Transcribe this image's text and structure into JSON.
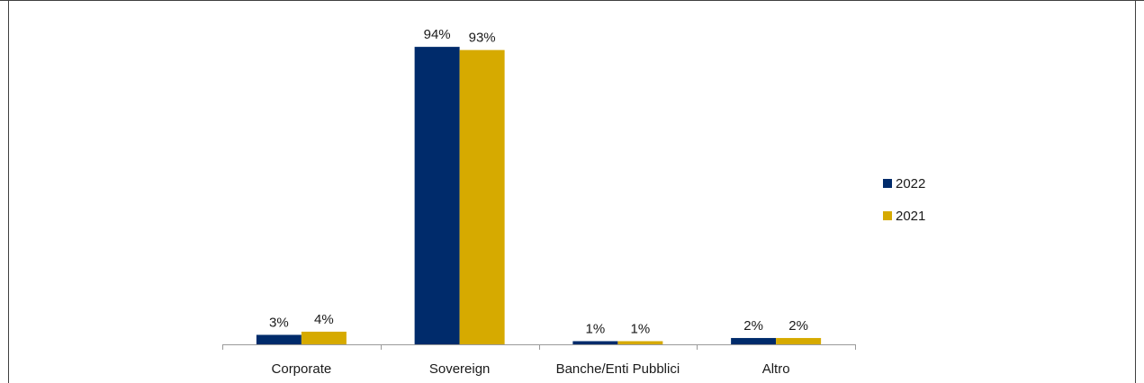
{
  "chart_data": {
    "type": "bar",
    "categories": [
      "Corporate",
      "Sovereign",
      "Banche/Enti Pubblici",
      "Altro"
    ],
    "series": [
      {
        "name": "2022",
        "values": [
          3,
          94,
          1,
          2
        ],
        "labels": [
          "3%",
          "94%",
          "1%",
          "2%"
        ],
        "color": "#002B6B"
      },
      {
        "name": "2021",
        "values": [
          4,
          93,
          1,
          2
        ],
        "labels": [
          "4%",
          "93%",
          "1%",
          "2%"
        ],
        "color": "#D6AA00"
      }
    ],
    "ylim": [
      0,
      100
    ],
    "grid": false,
    "legend_position": "right",
    "axis_color": "#9a9a9a",
    "frame_color": "#404040"
  }
}
